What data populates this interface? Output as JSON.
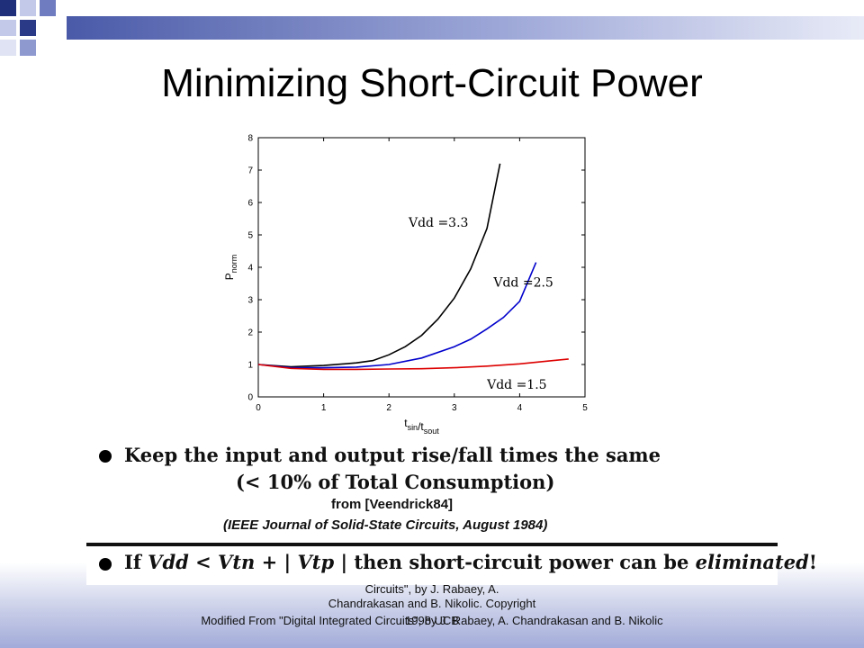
{
  "slide": {
    "title": "Minimizing Short-Circuit Power"
  },
  "chart_data": {
    "type": "line",
    "xlabel": "t_sin/t_sout",
    "ylabel": "P_norm",
    "xlim": [
      0,
      5
    ],
    "ylim": [
      0,
      8
    ],
    "xticks": [
      "0",
      "1",
      "2",
      "3",
      "4",
      "5"
    ],
    "yticks": [
      "0",
      "1",
      "2",
      "3",
      "4",
      "5",
      "6",
      "7",
      "8"
    ],
    "series": [
      {
        "name": "Vdd =3.3",
        "color": "#000000",
        "points": [
          [
            0,
            1.0
          ],
          [
            0.5,
            0.93
          ],
          [
            1.0,
            0.97
          ],
          [
            1.5,
            1.05
          ],
          [
            1.75,
            1.12
          ],
          [
            2.0,
            1.3
          ],
          [
            2.25,
            1.55
          ],
          [
            2.5,
            1.9
          ],
          [
            2.75,
            2.4
          ],
          [
            3.0,
            3.05
          ],
          [
            3.25,
            3.95
          ],
          [
            3.5,
            5.2
          ],
          [
            3.7,
            7.2
          ]
        ]
      },
      {
        "name": "Vdd =2.5",
        "color": "#0000cc",
        "points": [
          [
            0,
            1.0
          ],
          [
            0.5,
            0.9
          ],
          [
            1.0,
            0.9
          ],
          [
            1.5,
            0.92
          ],
          [
            2.0,
            1.0
          ],
          [
            2.5,
            1.2
          ],
          [
            3.0,
            1.55
          ],
          [
            3.25,
            1.78
          ],
          [
            3.5,
            2.1
          ],
          [
            3.75,
            2.45
          ],
          [
            4.0,
            2.95
          ],
          [
            4.25,
            4.15
          ]
        ]
      },
      {
        "name": "Vdd =1.5",
        "color": "#dd0000",
        "points": [
          [
            0,
            1.0
          ],
          [
            0.5,
            0.88
          ],
          [
            1.0,
            0.85
          ],
          [
            1.5,
            0.85
          ],
          [
            2.0,
            0.86
          ],
          [
            2.5,
            0.87
          ],
          [
            3.0,
            0.9
          ],
          [
            3.5,
            0.95
          ],
          [
            4.0,
            1.02
          ],
          [
            4.5,
            1.12
          ],
          [
            4.75,
            1.17
          ]
        ]
      }
    ],
    "grid": false
  },
  "bullets": {
    "item1": "Keep the input and output rise/fall times the same",
    "item1_sub": "(< 10% of Total Consumption)",
    "source": "from [Veendrick84]",
    "journal": "(IEEE Journal of Solid-State Circuits, August 1984)",
    "item2_prefix": "If ",
    "item2_formula": "Vdd < Vtn + | Vtp |",
    "item2_middle": " then short-circuit power can be ",
    "item2_emph": "eliminated",
    "item2_end": "!"
  },
  "footer": {
    "line1": "Circuits\", by J. Rabaey, A.",
    "line2": "Chandrakasan and B. Nikolic. Copyright",
    "line3": "Modified From \"Digital Integrated Circuits\", by J. Rabaey, A. Chandrakasan and B. Nikolic",
    "line3_overlap": "1998 UCB"
  }
}
